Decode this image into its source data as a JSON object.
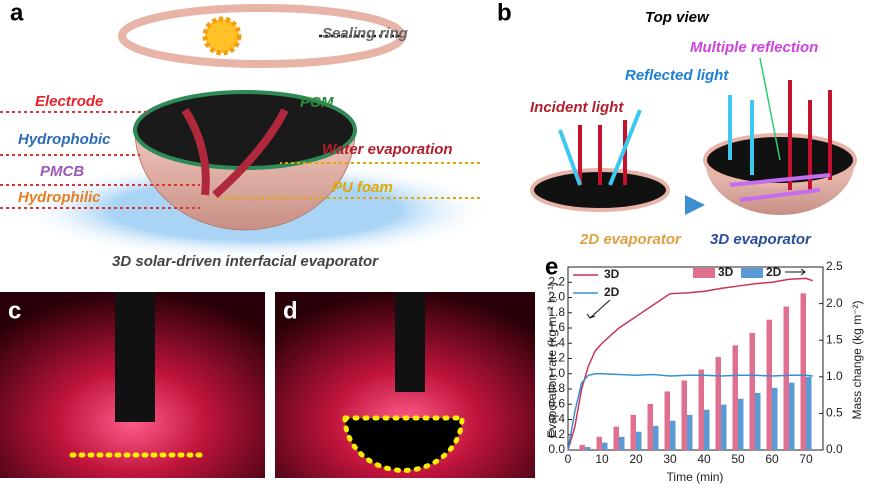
{
  "panel_a": {
    "label": "a",
    "sealing_ring": "Sealing ring",
    "electrode": "Electrode",
    "pcm": "PCM",
    "hydrophobic": "Hydrophobic",
    "water_evaporation": "Water evaporation",
    "pmcb": "PMCB",
    "hydrophilic": "Hydrophilic",
    "pu_foam": "PU foam",
    "caption": "3D solar-driven interfacial evaporator"
  },
  "panel_b": {
    "label": "b",
    "title": "Top view",
    "multiple_reflection": "Multiple reflection",
    "reflected_light": "Reflected light",
    "incident_light": "Incident light",
    "evaporator_2d": "2D evaporator",
    "evaporator_3d": "3D evaporator"
  },
  "panel_c": {
    "label": "c"
  },
  "panel_d": {
    "label": "d"
  },
  "chart_data": {
    "type": "combo",
    "label": "e",
    "x_label": "Time (min)",
    "y_label": "Evaporation rate (kg m⁻² h⁻¹)",
    "y2_label": "Mass change (kg m⁻²)",
    "xlim": [
      0,
      75
    ],
    "xticks": [
      0,
      10,
      20,
      30,
      40,
      50,
      60,
      70
    ],
    "ylim": [
      0,
      2.4
    ],
    "yticks": [
      {
        "value": 0,
        "label": "0.0"
      },
      {
        "value": 0.2,
        "label": "0.2"
      },
      {
        "value": 0.4,
        "label": "0.4"
      },
      {
        "value": 0.6,
        "label": "0.6"
      },
      {
        "value": 0.8,
        "label": "0.8"
      },
      {
        "value": 1,
        "label": "1.0"
      },
      {
        "value": 1.2,
        "label": "1.2"
      },
      {
        "value": 1.4,
        "label": "1.4"
      },
      {
        "value": 1.6,
        "label": "1.6"
      },
      {
        "value": 1.8,
        "label": "1.8"
      },
      {
        "value": 2,
        "label": "2.0"
      },
      {
        "value": 2.2,
        "label": "2.2"
      }
    ],
    "y2lim": [
      0,
      2.5
    ],
    "y2ticks": [
      {
        "value": 0,
        "label": "0.0"
      },
      {
        "value": 0.5,
        "label": "0.5"
      },
      {
        "value": 1,
        "label": "1.0"
      },
      {
        "value": 1.5,
        "label": "1.5"
      },
      {
        "value": 2,
        "label": "2.0"
      },
      {
        "value": 2.5,
        "label": "2.5"
      }
    ],
    "series": [
      {
        "name": "3D",
        "type": "line",
        "color": "#cc3355",
        "x": [
          0,
          2,
          4,
          6,
          8,
          10,
          15,
          20,
          25,
          30,
          35,
          40,
          45,
          50,
          55,
          60,
          65,
          70,
          72
        ],
        "values": [
          0,
          0.3,
          0.8,
          1.1,
          1.3,
          1.4,
          1.6,
          1.75,
          1.9,
          2.05,
          2.06,
          2.08,
          2.12,
          2.15,
          2.18,
          2.2,
          2.24,
          2.25,
          2.22
        ]
      },
      {
        "name": "2D",
        "type": "line",
        "color": "#3a8fd0",
        "x": [
          0,
          2,
          4,
          6,
          8,
          10,
          15,
          20,
          25,
          30,
          35,
          40,
          45,
          50,
          55,
          60,
          65,
          70,
          72
        ],
        "values": [
          0,
          0.5,
          0.88,
          0.98,
          1.0,
          1.0,
          0.99,
          0.98,
          0.99,
          0.97,
          0.98,
          0.98,
          0.97,
          0.98,
          0.98,
          0.97,
          0.98,
          0.98,
          0.97
        ]
      },
      {
        "name": "3D",
        "type": "bar",
        "axis": "y2",
        "color": "#e07090",
        "x": [
          5,
          10,
          15,
          20,
          25,
          30,
          35,
          40,
          45,
          50,
          55,
          60,
          65,
          70
        ],
        "values": [
          0.07,
          0.18,
          0.32,
          0.48,
          0.63,
          0.8,
          0.95,
          1.1,
          1.27,
          1.43,
          1.6,
          1.78,
          1.96,
          2.14
        ]
      },
      {
        "name": "2D",
        "type": "bar",
        "axis": "y2",
        "color": "#5b9bd5",
        "x": [
          5,
          10,
          15,
          20,
          25,
          30,
          35,
          40,
          45,
          50,
          55,
          60,
          65,
          70
        ],
        "values": [
          0.04,
          0.1,
          0.18,
          0.25,
          0.33,
          0.4,
          0.48,
          0.55,
          0.62,
          0.7,
          0.78,
          0.85,
          0.92,
          1.0
        ]
      }
    ]
  }
}
